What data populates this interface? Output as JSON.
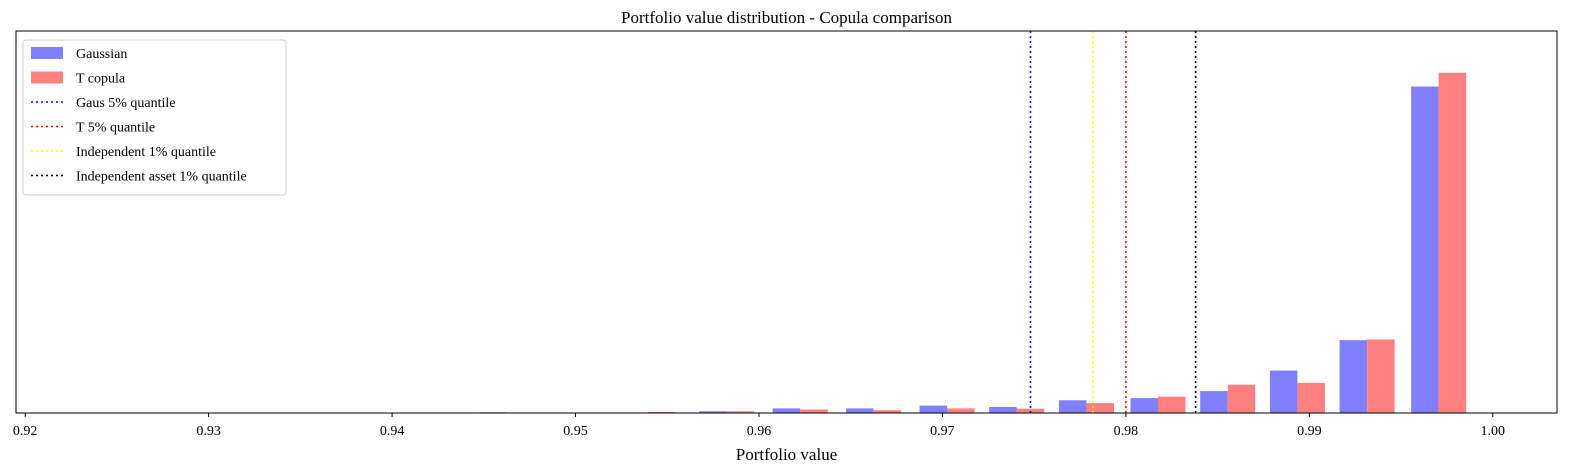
{
  "chart_data": {
    "type": "bar",
    "title": "Portfolio value distribution - Copula comparison",
    "xlabel": "Portfolio value",
    "ylabel": "",
    "xlim": [
      0.9195,
      1.0035
    ],
    "ylim": [
      0,
      1.08
    ],
    "xticks": [
      "0.92",
      "0.93",
      "0.94",
      "0.95",
      "0.96",
      "0.97",
      "0.98",
      "0.99",
      "1.00"
    ],
    "xtick_values": [
      0.92,
      0.93,
      0.94,
      0.95,
      0.96,
      0.97,
      0.98,
      0.99,
      1.0
    ],
    "show_yticks": false,
    "grid": false,
    "legend_position": "top-left",
    "series": [
      {
        "name": "Gaussian",
        "color": "#8080ff",
        "bars": [
          {
            "x": 0.9455,
            "value": 0.002
          },
          {
            "x": 0.9495,
            "value": 0.001
          },
          {
            "x": 0.9535,
            "value": 0.001
          },
          {
            "x": 0.9575,
            "value": 0.005
          },
          {
            "x": 0.9615,
            "value": 0.013
          },
          {
            "x": 0.9655,
            "value": 0.013
          },
          {
            "x": 0.9695,
            "value": 0.021
          },
          {
            "x": 0.9733,
            "value": 0.017
          },
          {
            "x": 0.9771,
            "value": 0.036
          },
          {
            "x": 0.981,
            "value": 0.042
          },
          {
            "x": 0.9848,
            "value": 0.062
          },
          {
            "x": 0.9886,
            "value": 0.12
          },
          {
            "x": 0.9924,
            "value": 0.206
          },
          {
            "x": 0.9963,
            "value": 0.923
          }
        ]
      },
      {
        "name": "T copula",
        "color": "#ff8080",
        "bars": [
          {
            "x": 0.9547,
            "value": 0.003
          },
          {
            "x": 0.959,
            "value": 0.005
          },
          {
            "x": 0.963,
            "value": 0.01
          },
          {
            "x": 0.967,
            "value": 0.008
          },
          {
            "x": 0.971,
            "value": 0.013
          },
          {
            "x": 0.9748,
            "value": 0.012
          },
          {
            "x": 0.9786,
            "value": 0.028
          },
          {
            "x": 0.9825,
            "value": 0.046
          },
          {
            "x": 0.9863,
            "value": 0.08
          },
          {
            "x": 0.9901,
            "value": 0.085
          },
          {
            "x": 0.9939,
            "value": 0.208
          },
          {
            "x": 0.9978,
            "value": 0.962
          }
        ]
      }
    ],
    "bar_width": 0.0015,
    "vlines": [
      {
        "name": "Gaus 5% quantile",
        "x": 0.9748,
        "color": "#0000ff"
      },
      {
        "name": "T 5% quantile",
        "x": 0.98,
        "color": "#ff0000"
      },
      {
        "name": "Independent 1% quantile",
        "x": 0.9782,
        "color": "#ffff00"
      },
      {
        "name": "Independent asset 1% quantile",
        "x": 0.9838,
        "color": "#000000"
      }
    ]
  }
}
